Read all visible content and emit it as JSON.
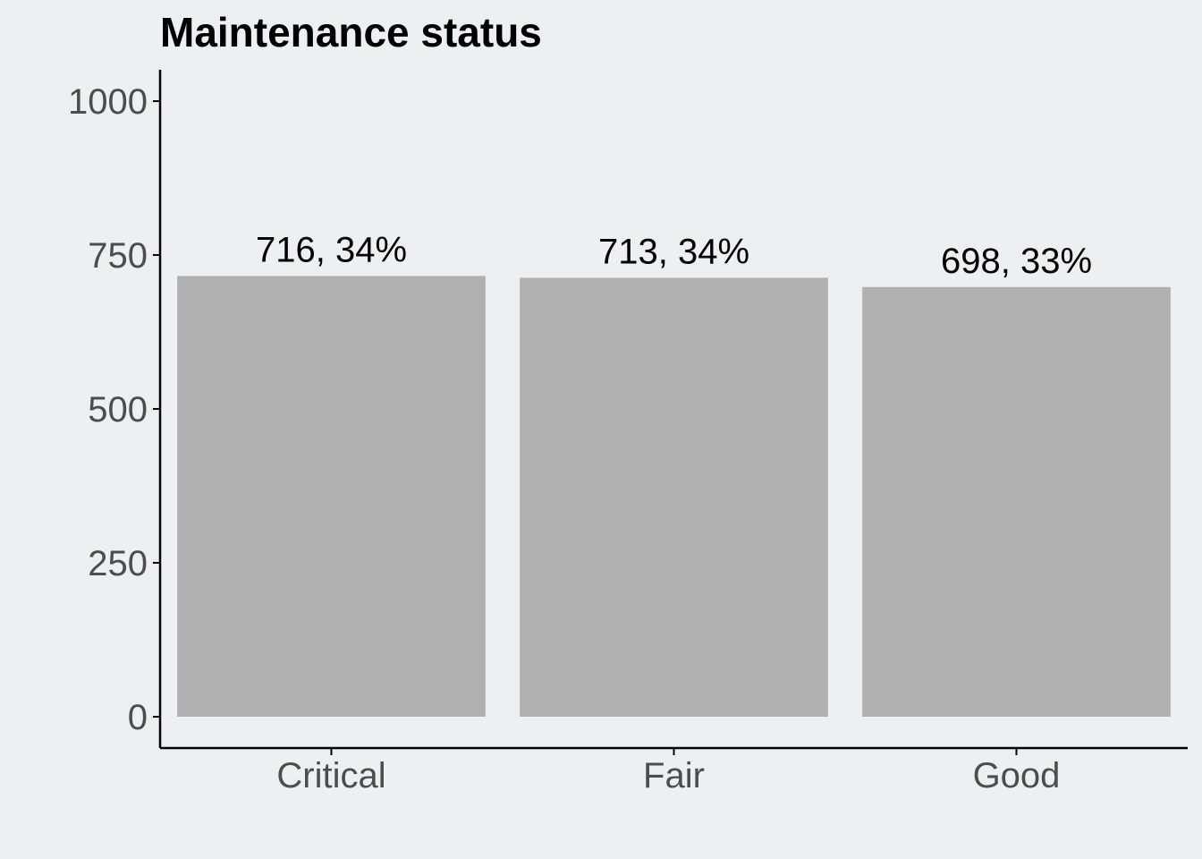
{
  "chart_data": {
    "type": "bar",
    "title": "Maintenance status",
    "categories": [
      "Critical",
      "Fair",
      "Good"
    ],
    "values": [
      716,
      713,
      698
    ],
    "value_labels": [
      "716, 34%",
      "713, 34%",
      "698, 33%"
    ],
    "ylim": [
      0,
      1000
    ],
    "yticks": [
      0,
      250,
      500,
      750,
      1000
    ],
    "grid": false,
    "colors": {
      "background": "#ecf0f1",
      "bar": "#b0b0b0",
      "axis": "#000000",
      "tick_text": "#4d4d4d",
      "label_text": "#000000"
    }
  }
}
